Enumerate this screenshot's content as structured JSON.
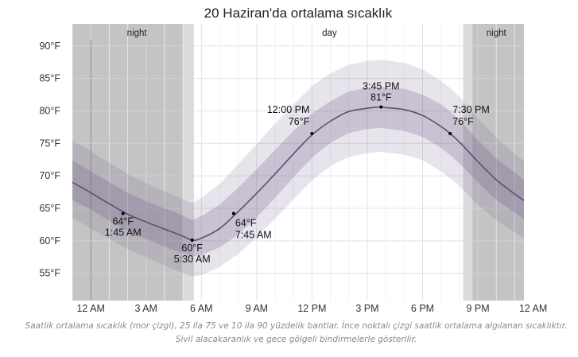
{
  "chart_data": {
    "type": "line",
    "title": "20 Haziran'da ortalama sıcaklık",
    "xlabel": "",
    "ylabel": "",
    "x_unit": "hour",
    "xlim": [
      -1,
      23.5
    ],
    "ylim": [
      50.8,
      93.4
    ],
    "yticks": [
      55,
      60,
      65,
      70,
      75,
      80,
      85,
      90
    ],
    "ytick_labels": [
      "55°F",
      "60°F",
      "65°F",
      "70°F",
      "75°F",
      "80°F",
      "85°F",
      "90°F"
    ],
    "xticks": [
      0,
      3,
      6,
      9,
      12,
      15,
      18,
      21,
      24
    ],
    "xtick_labels": [
      "12 AM",
      "3 AM",
      "6 AM",
      "9 AM",
      "12 PM",
      "3 PM",
      "6 PM",
      "9 PM",
      "12 AM"
    ],
    "grid": true,
    "periods": [
      {
        "label": "night",
        "start": -1,
        "end": 5.4
      },
      {
        "label": "day",
        "start": 5.4,
        "end": 20.7
      },
      {
        "label": "night",
        "start": 20.7,
        "end": 23.5
      }
    ],
    "twilight": [
      {
        "start": 5.0,
        "end": 5.6
      },
      {
        "start": 20.2,
        "end": 20.7
      }
    ],
    "x": [
      -1,
      0,
      1,
      2,
      3,
      4,
      5,
      5.5,
      6,
      7,
      8,
      9,
      10,
      11,
      12,
      13,
      14,
      15,
      15.75,
      16,
      17,
      18,
      19,
      19.5,
      20,
      21,
      22,
      23,
      23.5
    ],
    "series": [
      {
        "role": "mean",
        "values": [
          69,
          67.4,
          65.7,
          64.1,
          62.9,
          61.8,
          60.7,
          60.1,
          60.4,
          61.9,
          64.5,
          67.3,
          70.3,
          73.4,
          76.3,
          78.4,
          79.9,
          80.4,
          80.6,
          80.5,
          80.2,
          79.3,
          77.6,
          76.5,
          75.2,
          72.2,
          69.4,
          67.2,
          66.2
        ]
      },
      {
        "role": "p25",
        "values": [
          66.3,
          64.8,
          63.1,
          61.5,
          60.3,
          59.1,
          58.1,
          57.6,
          57.8,
          59.0,
          61.0,
          63.6,
          66.6,
          69.8,
          72.8,
          75.1,
          76.6,
          77.2,
          77.4,
          77.3,
          76.9,
          76.0,
          74.3,
          73.2,
          71.9,
          69.0,
          66.3,
          64.3,
          63.4
        ]
      },
      {
        "role": "p75",
        "values": [
          72.4,
          70.7,
          69.0,
          67.4,
          66.1,
          65.0,
          63.9,
          63.2,
          63.8,
          65.6,
          68.2,
          71.0,
          74.0,
          76.9,
          79.6,
          81.5,
          83.0,
          83.6,
          83.7,
          83.6,
          83.4,
          82.5,
          81.0,
          79.9,
          78.6,
          75.5,
          72.7,
          70.5,
          69.4
        ]
      },
      {
        "role": "p10",
        "values": [
          63.5,
          61.9,
          60.3,
          58.7,
          57.5,
          56.2,
          55.0,
          54.5,
          54.7,
          56.0,
          58.0,
          60.5,
          63.4,
          66.4,
          69.3,
          71.5,
          72.9,
          73.5,
          73.7,
          73.6,
          73.3,
          72.4,
          70.7,
          69.6,
          68.4,
          65.6,
          63.2,
          61.3,
          60.4
        ]
      },
      {
        "role": "p90",
        "values": [
          75.5,
          73.8,
          72.0,
          70.3,
          68.9,
          67.6,
          66.4,
          65.8,
          66.6,
          68.8,
          71.8,
          74.9,
          78.0,
          81.0,
          83.8,
          85.8,
          87.1,
          87.7,
          87.9,
          87.8,
          87.4,
          86.4,
          84.6,
          83.5,
          82.2,
          78.9,
          75.9,
          73.4,
          72.3
        ]
      }
    ],
    "annotations": [
      {
        "x": 1.75,
        "y": 64.2,
        "value": "64°F",
        "time": "1:45 AM",
        "position": "below"
      },
      {
        "x": 5.5,
        "y": 60.1,
        "value": "60°F",
        "time": "5:30 AM",
        "position": "below"
      },
      {
        "x": 7.75,
        "y": 64.2,
        "value": "64°F",
        "time": "7:45 AM",
        "position": "below-right"
      },
      {
        "x": 12,
        "y": 76.5,
        "value": "76°F",
        "time": "12:00 PM",
        "position": "above-left"
      },
      {
        "x": 15.75,
        "y": 80.6,
        "value": "81°F",
        "time": "3:45 PM",
        "position": "above"
      },
      {
        "x": 19.5,
        "y": 76.5,
        "value": "76°F",
        "time": "7:30 PM",
        "position": "above-right"
      }
    ],
    "colors": {
      "mean_line": "#5e4e72",
      "band_25_75": "#5f4a7a",
      "band_10_90": "#6b558a",
      "night_shade": "#c4c4c4",
      "twilight_shade": "#dcdcdc",
      "marker": "#000000",
      "text": "#222222",
      "grid": "#e6e6e6"
    }
  },
  "caption": "Saatlik ortalama sıcaklık (mor çizgi), 25 ila 75 ve 10 ila 90 yüzdelik bantlar. İnce noktalı çizgi saatlik ortalama algılanan sıcaklıktır. Sivil alacakaranlık ve gece gölgeli bindirmelerle gösterilir."
}
